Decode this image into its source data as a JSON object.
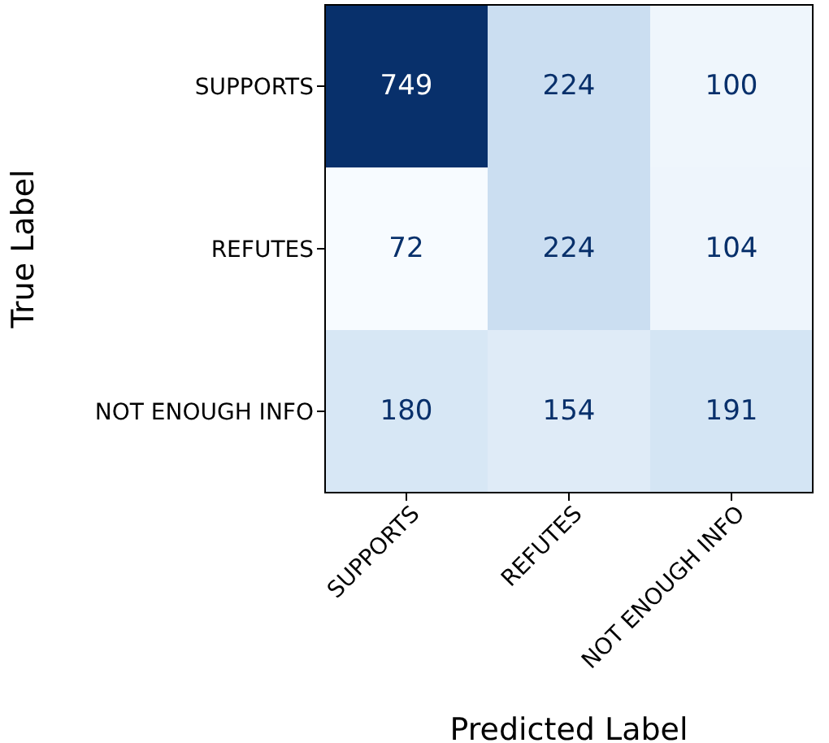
{
  "chart_data": {
    "type": "heatmap",
    "data_labels": true,
    "xlabel": "Predicted Label",
    "ylabel": "True Label",
    "categories": [
      "SUPPORTS",
      "REFUTES",
      "NOT ENOUGH INFO"
    ],
    "y_categories": [
      "SUPPORTS",
      "REFUTES",
      "NOT ENOUGH INFO"
    ],
    "cells": [
      [
        749,
        224,
        100
      ],
      [
        72,
        224,
        104
      ],
      [
        180,
        154,
        191
      ]
    ]
  }
}
